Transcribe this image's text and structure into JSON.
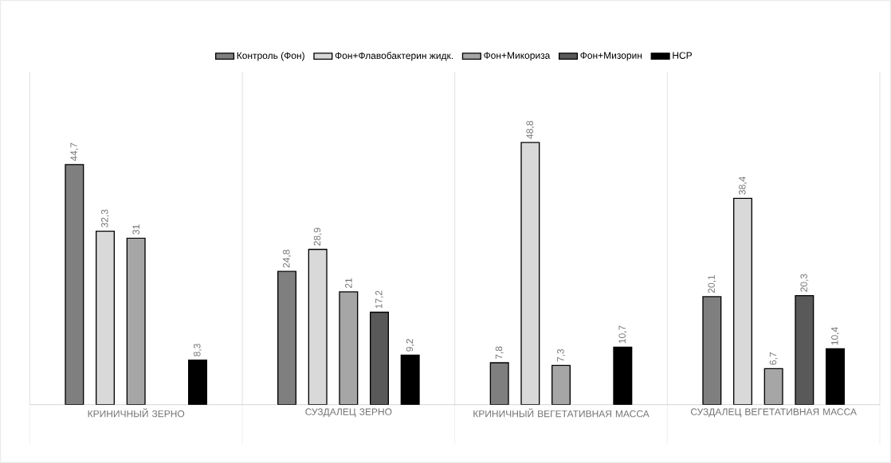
{
  "chart_data": {
    "type": "bar",
    "categories": [
      "КРИНИЧНЫЙ ЗЕРНО",
      "СУЗДАЛЕЦ ЗЕРНО",
      "КРИНИЧНЫЙ ВЕГЕТАТИВНАЯ МАССА",
      "СУЗДАЛЕЦ ВЕГЕТАТИВНАЯ МАССА"
    ],
    "series": [
      {
        "name": "Контроль (Фон)",
        "color": "#7f7f7f",
        "values": [
          44.7,
          24.8,
          7.8,
          20.1
        ],
        "value_labels": [
          "44,7",
          "24,8",
          "7,8",
          "20,1"
        ]
      },
      {
        "name": "Фон+Флавобактерин жидк.",
        "color": "#d9d9d9",
        "values": [
          32.3,
          28.9,
          48.8,
          38.4
        ],
        "value_labels": [
          "32,3",
          "28,9",
          "48,8",
          "38,4"
        ]
      },
      {
        "name": "Фон+Микориза",
        "color": "#a6a6a6",
        "values": [
          31,
          21,
          7.3,
          6.7
        ],
        "value_labels": [
          "31",
          "21",
          "7,3",
          "6,7"
        ]
      },
      {
        "name": "Фон+Мизорин",
        "color": "#595959",
        "values": [
          null,
          17.2,
          null,
          20.3
        ],
        "value_labels": [
          null,
          "17,2",
          null,
          "20,3"
        ]
      },
      {
        "name": "НСР",
        "color": "#000000",
        "values": [
          8.3,
          9.2,
          10.7,
          10.4
        ],
        "value_labels": [
          "8,3",
          "9,2",
          "10,7",
          "10,4"
        ]
      }
    ],
    "legend": "top"
  }
}
